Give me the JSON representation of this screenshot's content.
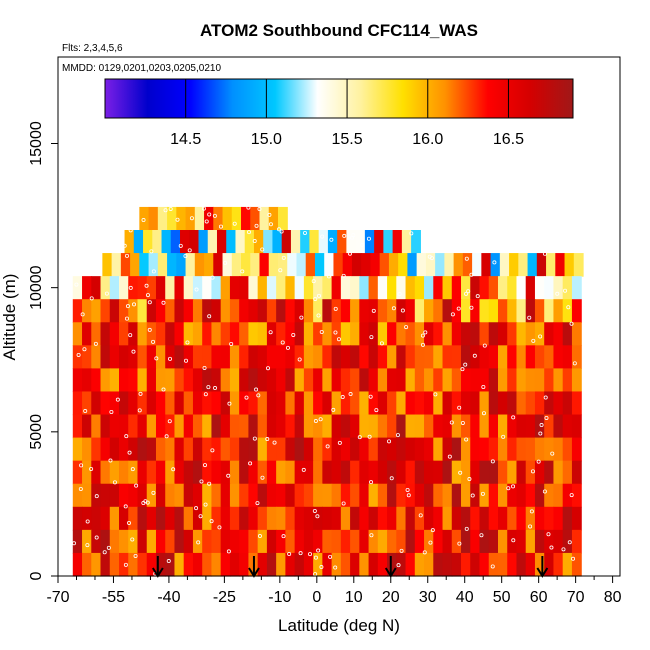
{
  "chart_data": {
    "type": "heatmap",
    "title": "ATOM2 Southbound CFC114_WAS",
    "subtitle_flights": "Flts: 2,3,4,5,6",
    "subtitle_dates": "MMDD: 0129,0201,0203,0205,0210",
    "xlabel": "Latitude (deg N)",
    "ylabel": "Altitude (m)",
    "xlim": [
      -70,
      82
    ],
    "ylim": [
      0,
      18000
    ],
    "x_ticks": [
      -70,
      -55,
      -40,
      -25,
      -10,
      0,
      10,
      20,
      30,
      40,
      50,
      60,
      70,
      80
    ],
    "x_tick_labels": [
      "-70",
      "-55",
      "-40",
      "-25",
      "-10",
      "0",
      "10",
      "20",
      "30",
      "40",
      "50",
      "60",
      "70",
      "80"
    ],
    "x_minor_ticks": [
      -65,
      -60,
      -50,
      -45,
      -35,
      -30,
      -20,
      -15,
      -5,
      5,
      15,
      25,
      35,
      45,
      55,
      65,
      75
    ],
    "y_ticks": [
      0,
      5000,
      10000,
      15000
    ],
    "y_tick_labels": [
      "0",
      "5000",
      "10000",
      "15000"
    ],
    "colorbar": {
      "range": [
        14.0,
        16.9
      ],
      "ticks": [
        14.5,
        15.0,
        15.5,
        16.0,
        16.5
      ],
      "tick_labels": [
        "14.5",
        "15.0",
        "15.5",
        "16.0",
        "16.5"
      ],
      "colors": [
        "#7b1fe6",
        "#0000cc",
        "#0000ff",
        "#0090ff",
        "#00c8ff",
        "#ffffff",
        "#fff2a0",
        "#ffe000",
        "#ff9000",
        "#ff0000",
        "#d40000",
        "#a01818"
      ]
    },
    "arrows_latitude": [
      -43,
      -17,
      20,
      61
    ],
    "rows": [
      {
        "alt": 12000,
        "lat_start": -48,
        "lat_end": -10,
        "value_low": 15.5,
        "value_high": 16.6
      },
      {
        "alt": 11200,
        "lat_start": -52,
        "lat_end": 28,
        "value_low": 14.6,
        "value_high": 16.7
      },
      {
        "alt": 10400,
        "lat_start": -58,
        "lat_end": 70,
        "value_low": 14.8,
        "value_high": 16.7
      },
      {
        "alt": 9600,
        "lat_start": -66,
        "lat_end": 70,
        "value_low": 15.2,
        "value_high": 16.8
      },
      {
        "alt": 8800,
        "lat_start": -66,
        "lat_end": 70,
        "value_low": 15.6,
        "value_high": 16.8
      },
      {
        "alt": 8000,
        "lat_start": -66,
        "lat_end": 70,
        "value_low": 15.9,
        "value_high": 16.8
      },
      {
        "alt": 7200,
        "lat_start": -66,
        "lat_end": 70,
        "value_low": 16.0,
        "value_high": 16.8
      },
      {
        "alt": 6400,
        "lat_start": -66,
        "lat_end": 70,
        "value_low": 16.0,
        "value_high": 16.8
      },
      {
        "alt": 5600,
        "lat_start": -66,
        "lat_end": 71,
        "value_low": 16.0,
        "value_high": 16.8
      },
      {
        "alt": 4800,
        "lat_start": -66,
        "lat_end": 71,
        "value_low": 16.0,
        "value_high": 16.85
      },
      {
        "alt": 4000,
        "lat_start": -66,
        "lat_end": 71,
        "value_low": 16.0,
        "value_high": 16.85
      },
      {
        "alt": 3200,
        "lat_start": -66,
        "lat_end": 71,
        "value_low": 16.0,
        "value_high": 16.85
      },
      {
        "alt": 2400,
        "lat_start": -66,
        "lat_end": 71,
        "value_low": 16.0,
        "value_high": 16.85
      },
      {
        "alt": 1600,
        "lat_start": -66,
        "lat_end": 71,
        "value_low": 16.0,
        "value_high": 16.85
      },
      {
        "alt": 800,
        "lat_start": -66,
        "lat_end": 71,
        "value_low": 16.0,
        "value_high": 16.85
      },
      {
        "alt": 0,
        "lat_start": -66,
        "lat_end": 71,
        "value_low": 16.0,
        "value_high": 16.85
      }
    ],
    "grid": false
  }
}
